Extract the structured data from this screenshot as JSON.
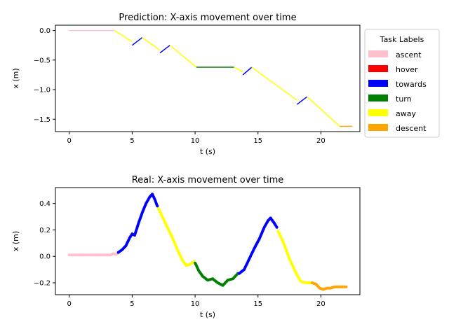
{
  "chart_data": [
    {
      "type": "line",
      "title": "Prediction: X-axis movement over time",
      "xlabel": "t (s)",
      "ylabel": "x (m)",
      "xlim": [
        -1.1,
        23.1
      ],
      "ylim": [
        -1.71,
        0.09
      ],
      "xticks": [
        0,
        5,
        10,
        15,
        20
      ],
      "yticks": [
        0.0,
        -0.5,
        -1.0,
        -1.5
      ],
      "ytick_labels": [
        "0.0",
        "−0.5",
        "−1.0",
        "−1.5"
      ],
      "grid": false,
      "legend": {
        "title": "Task Labels",
        "placement": "outside-right",
        "entries": [
          {
            "label": "ascent",
            "color": "#ffc0cb"
          },
          {
            "label": "hover",
            "color": "#ff0000"
          },
          {
            "label": "towards",
            "color": "#0000ff"
          },
          {
            "label": "turn",
            "color": "#008000"
          },
          {
            "label": "away",
            "color": "#ffff00"
          },
          {
            "label": "descent",
            "color": "#ffa500"
          }
        ]
      },
      "series": [
        {
          "label": "ascent",
          "color": "#ffc0cb",
          "x": [
            0.0,
            3.6
          ],
          "y": [
            0.0,
            0.0
          ]
        },
        {
          "label": "away",
          "color": "#ffff00",
          "x": [
            3.6,
            5.0
          ],
          "y": [
            0.0,
            -0.19
          ]
        },
        {
          "label": "towards",
          "color": "#0000ff",
          "x": [
            5.0,
            5.8
          ],
          "y": [
            -0.25,
            -0.12
          ]
        },
        {
          "label": "away",
          "color": "#ffff00",
          "x": [
            5.8,
            7.2
          ],
          "y": [
            -0.12,
            -0.33
          ]
        },
        {
          "label": "towards",
          "color": "#0000ff",
          "x": [
            7.2,
            8.0
          ],
          "y": [
            -0.38,
            -0.25
          ]
        },
        {
          "label": "away",
          "color": "#ffff00",
          "x": [
            8.0,
            10.1
          ],
          "y": [
            -0.25,
            -0.62
          ]
        },
        {
          "label": "turn",
          "color": "#008000",
          "x": [
            10.1,
            13.1
          ],
          "y": [
            -0.62,
            -0.62
          ]
        },
        {
          "label": "away",
          "color": "#ffff00",
          "x": [
            13.1,
            13.8
          ],
          "y": [
            -0.62,
            -0.7
          ]
        },
        {
          "label": "towards",
          "color": "#0000ff",
          "x": [
            13.8,
            14.5
          ],
          "y": [
            -0.75,
            -0.62
          ]
        },
        {
          "label": "away",
          "color": "#ffff00",
          "x": [
            14.5,
            18.1
          ],
          "y": [
            -0.62,
            -1.18
          ]
        },
        {
          "label": "towards",
          "color": "#0000ff",
          "x": [
            18.1,
            18.9
          ],
          "y": [
            -1.25,
            -1.12
          ]
        },
        {
          "label": "away",
          "color": "#ffff00",
          "x": [
            18.9,
            21.5
          ],
          "y": [
            -1.12,
            -1.62
          ]
        },
        {
          "label": "descent",
          "color": "#ffa500",
          "x": [
            21.5,
            22.5
          ],
          "y": [
            -1.62,
            -1.62
          ]
        }
      ]
    },
    {
      "type": "scatter",
      "title": "Real: X-axis movement over time",
      "xlabel": "t (s)",
      "ylabel": "x (m)",
      "xlim": [
        -1.1,
        23.1
      ],
      "ylim": [
        -0.29,
        0.52
      ],
      "xticks": [
        0,
        5,
        10,
        15,
        20
      ],
      "yticks": [
        0.4,
        0.2,
        0.0,
        -0.2
      ],
      "ytick_labels": [
        "0.4",
        "0.2",
        "0.0",
        "−0.2"
      ],
      "grid": false,
      "series": [
        {
          "label": "ascent",
          "color": "#ffc0cb",
          "x": [
            0,
            0.5,
            1.0,
            1.5,
            2.0,
            2.5,
            3.0,
            3.3,
            3.5,
            3.7,
            3.8
          ],
          "y": [
            0.01,
            0.01,
            0.01,
            0.01,
            0.01,
            0.01,
            0.01,
            0.01,
            0.02,
            0.015,
            0.02
          ]
        },
        {
          "label": "towards",
          "color": "#0000ff",
          "x": [
            3.9,
            4.2,
            4.5,
            4.8,
            5.0,
            5.2,
            5.5,
            5.8,
            6.1,
            6.4,
            6.6,
            6.8,
            7.0
          ],
          "y": [
            0.03,
            0.05,
            0.08,
            0.14,
            0.17,
            0.16,
            0.25,
            0.33,
            0.4,
            0.45,
            0.47,
            0.43,
            0.38
          ]
        },
        {
          "label": "away",
          "color": "#ffff00",
          "x": [
            7.1,
            7.4,
            7.8,
            8.2,
            8.6,
            9.0,
            9.3,
            9.6,
            9.9
          ],
          "y": [
            0.36,
            0.3,
            0.22,
            0.14,
            0.05,
            -0.03,
            -0.07,
            -0.06,
            -0.04
          ]
        },
        {
          "label": "turn",
          "color": "#008000",
          "x": [
            10.0,
            10.3,
            10.6,
            11.0,
            11.4,
            11.8,
            12.2,
            12.6,
            13.0,
            13.4
          ],
          "y": [
            -0.05,
            -0.11,
            -0.15,
            -0.18,
            -0.17,
            -0.2,
            -0.22,
            -0.18,
            -0.17,
            -0.13
          ]
        },
        {
          "label": "towards",
          "color": "#0000ff",
          "x": [
            13.5,
            13.9,
            14.3,
            14.7,
            15.1,
            15.5,
            15.8,
            16.0,
            16.3,
            16.5
          ],
          "y": [
            -0.13,
            -0.1,
            -0.02,
            0.06,
            0.13,
            0.22,
            0.27,
            0.29,
            0.25,
            0.22
          ]
        },
        {
          "label": "away",
          "color": "#ffff00",
          "x": [
            16.6,
            16.9,
            17.2,
            17.5,
            17.8,
            18.1,
            18.4,
            18.8,
            19.2
          ],
          "y": [
            0.19,
            0.13,
            0.06,
            -0.02,
            -0.08,
            -0.14,
            -0.19,
            -0.2,
            -0.2
          ]
        },
        {
          "label": "descent",
          "color": "#ffa500",
          "x": [
            19.3,
            19.6,
            19.9,
            20.2,
            20.5,
            20.8,
            21.1,
            21.4,
            21.7,
            22.0
          ],
          "y": [
            -0.2,
            -0.21,
            -0.24,
            -0.25,
            -0.24,
            -0.24,
            -0.23,
            -0.23,
            -0.23,
            -0.23
          ]
        }
      ]
    }
  ]
}
